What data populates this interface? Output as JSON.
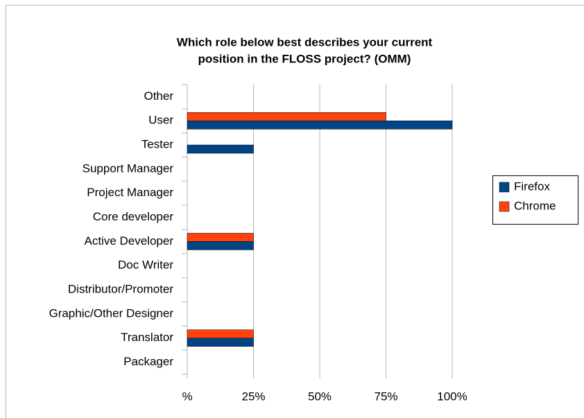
{
  "chart_data": {
    "type": "hbar",
    "title": [
      "Which role below best describes your current",
      "position in the FLOSS project? (OMM)"
    ],
    "categories": [
      "Other",
      "User",
      "Tester",
      "Support Manager",
      "Project Manager",
      "Core developer",
      "Active Developer",
      "Doc Writer",
      "Distributor/Promoter",
      "Graphic/Other Designer",
      "Translator",
      "Packager"
    ],
    "series": [
      {
        "name": "Firefox",
        "color": "#004586",
        "values": [
          0,
          100,
          25,
          0,
          0,
          0,
          25,
          0,
          0,
          0,
          25,
          0
        ]
      },
      {
        "name": "Chrome",
        "color": "#ff420e",
        "values": [
          0,
          75,
          0,
          0,
          0,
          0,
          25,
          0,
          0,
          0,
          25,
          0
        ]
      }
    ],
    "xlim": [
      0,
      100
    ],
    "xticks": [
      {
        "value": 0,
        "label": "%"
      },
      {
        "value": 25,
        "label": "25%"
      },
      {
        "value": 50,
        "label": "50%"
      },
      {
        "value": 75,
        "label": "75%"
      },
      {
        "value": 100,
        "label": "100%"
      }
    ],
    "grid": true,
    "legend": "right"
  }
}
